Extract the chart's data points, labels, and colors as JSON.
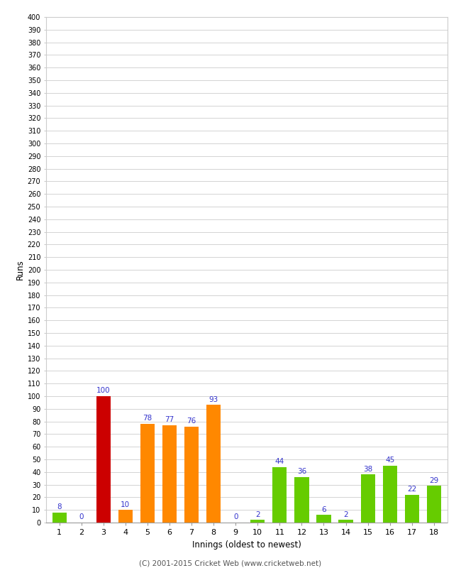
{
  "xlabel": "Innings (oldest to newest)",
  "ylabel": "Runs",
  "categories": [
    "1",
    "2",
    "3",
    "4",
    "5",
    "6",
    "7",
    "8",
    "9",
    "10",
    "11",
    "12",
    "13",
    "14",
    "15",
    "16",
    "17",
    "18"
  ],
  "values": [
    8,
    0,
    100,
    10,
    78,
    77,
    76,
    93,
    0,
    2,
    44,
    36,
    6,
    2,
    38,
    45,
    22,
    29
  ],
  "colors": [
    "#66cc00",
    "#66cc00",
    "#cc0000",
    "#ff8800",
    "#ff8800",
    "#ff8800",
    "#ff8800",
    "#ff8800",
    "#66cc00",
    "#66cc00",
    "#66cc00",
    "#66cc00",
    "#66cc00",
    "#66cc00",
    "#66cc00",
    "#66cc00",
    "#66cc00",
    "#66cc00"
  ],
  "ylim": [
    0,
    400
  ],
  "label_color": "#3333cc",
  "grid_color": "#cccccc",
  "bg_color": "#ffffff",
  "footer": "(C) 2001-2015 Cricket Web (www.cricketweb.net)",
  "fig_bg_color": "#ffffff"
}
